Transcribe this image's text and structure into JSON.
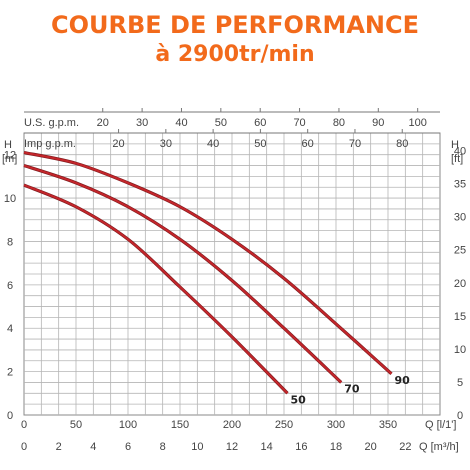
{
  "title_line1": "COURBE DE PERFORMANCE",
  "title_line2": "à 2900tr/min",
  "colors": {
    "title": "#f26a1b",
    "curve": "#c4262b",
    "grid": "#b5b5b5"
  },
  "chart_data": {
    "type": "line",
    "title": "COURBE DE PERFORMANCE à 2900tr/min",
    "grid": true,
    "x_m3h": {
      "label": "Q [m³/h]",
      "range": [
        0,
        24
      ],
      "ticks": [
        0,
        2,
        4,
        6,
        8,
        10,
        12,
        14,
        16,
        18,
        20,
        22
      ]
    },
    "x_lmin": {
      "label": "Q [l/1']",
      "ticks": [
        0,
        50,
        100,
        150,
        200,
        250,
        300,
        350
      ]
    },
    "x_usgpm": {
      "label": "U.S. g.p.m.",
      "ticks": [
        20,
        30,
        40,
        50,
        60,
        70,
        80,
        90,
        100
      ]
    },
    "x_impgpm": {
      "label": "Imp g.p.m.",
      "ticks": [
        20,
        30,
        40,
        50,
        60,
        70,
        80
      ]
    },
    "y_m": {
      "label": "H [m]",
      "range": [
        0,
        13
      ],
      "ticks": [
        0,
        2,
        4,
        6,
        8,
        10,
        12
      ]
    },
    "y_ft": {
      "label": "H [ft]",
      "ticks": [
        0,
        5,
        10,
        15,
        20,
        25,
        30,
        35,
        40
      ]
    },
    "series": [
      {
        "name": "50",
        "x": [
          0,
          3,
          6,
          9,
          12,
          15.2
        ],
        "y": [
          10.6,
          9.6,
          8.1,
          5.9,
          3.6,
          1.0
        ]
      },
      {
        "name": "70",
        "x": [
          0,
          3,
          6,
          9,
          12,
          15,
          18.3
        ],
        "y": [
          11.5,
          10.7,
          9.6,
          8.1,
          6.2,
          4.0,
          1.5
        ]
      },
      {
        "name": "90",
        "x": [
          0,
          3,
          6,
          9,
          12,
          15,
          18,
          21.2
        ],
        "y": [
          12.1,
          11.6,
          10.7,
          9.6,
          8.1,
          6.3,
          4.2,
          1.9
        ]
      }
    ]
  }
}
